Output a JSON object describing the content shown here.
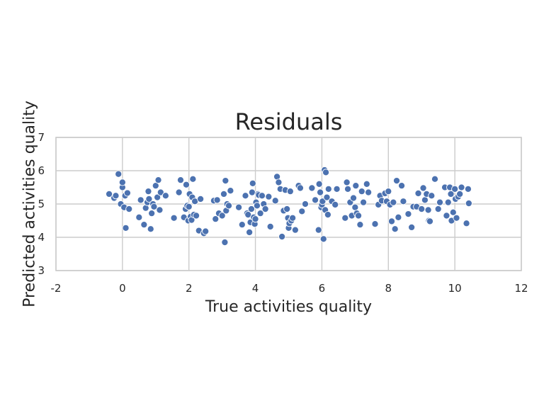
{
  "chart_data": {
    "type": "scatter",
    "title": "Residuals",
    "xlabel": "True activities quality",
    "ylabel": "Predicted activities quality",
    "xlim": [
      -2,
      12
    ],
    "ylim": [
      3,
      7
    ],
    "xticks": [
      -2,
      0,
      2,
      4,
      6,
      8,
      10,
      12
    ],
    "yticks": [
      3,
      4,
      5,
      6,
      7
    ],
    "grid": true,
    "legend": "none",
    "series": [
      {
        "color": "#4c72b0",
        "points": [
          [
            -0.4,
            5.3
          ],
          [
            -0.25,
            5.18
          ],
          [
            -0.2,
            5.25
          ],
          [
            -0.12,
            5.9
          ],
          [
            -0.05,
            5.0
          ],
          [
            0.0,
            5.5
          ],
          [
            0.0,
            5.65
          ],
          [
            0.05,
            4.9
          ],
          [
            0.08,
            5.25
          ],
          [
            0.1,
            4.28
          ],
          [
            0.15,
            5.33
          ],
          [
            0.2,
            4.85
          ],
          [
            0.5,
            4.6
          ],
          [
            0.55,
            5.12
          ],
          [
            0.65,
            4.38
          ],
          [
            0.7,
            4.88
          ],
          [
            0.75,
            5.05
          ],
          [
            0.78,
            5.38
          ],
          [
            0.8,
            5.15
          ],
          [
            0.85,
            4.25
          ],
          [
            0.88,
            4.72
          ],
          [
            0.92,
            5.0
          ],
          [
            0.95,
            4.92
          ],
          [
            1.0,
            5.55
          ],
          [
            1.05,
            5.2
          ],
          [
            1.08,
            5.72
          ],
          [
            1.12,
            4.82
          ],
          [
            1.15,
            5.35
          ],
          [
            1.3,
            5.25
          ],
          [
            1.55,
            4.58
          ],
          [
            1.7,
            5.35
          ],
          [
            1.75,
            5.72
          ],
          [
            1.85,
            4.6
          ],
          [
            1.9,
            4.85
          ],
          [
            1.92,
            5.58
          ],
          [
            1.95,
            4.95
          ],
          [
            1.98,
            4.5
          ],
          [
            2.0,
            4.92
          ],
          [
            2.02,
            5.3
          ],
          [
            2.05,
            4.62
          ],
          [
            2.08,
            4.52
          ],
          [
            2.1,
            5.2
          ],
          [
            2.12,
            5.75
          ],
          [
            2.15,
            4.68
          ],
          [
            2.18,
            5.08
          ],
          [
            2.22,
            4.65
          ],
          [
            2.3,
            4.2
          ],
          [
            2.35,
            5.15
          ],
          [
            2.45,
            4.12
          ],
          [
            2.5,
            4.18
          ],
          [
            2.75,
            5.1
          ],
          [
            2.8,
            4.55
          ],
          [
            2.85,
            5.12
          ],
          [
            2.9,
            4.72
          ],
          [
            3.0,
            4.65
          ],
          [
            3.05,
            5.3
          ],
          [
            3.08,
            3.85
          ],
          [
            3.1,
            5.7
          ],
          [
            3.12,
            4.8
          ],
          [
            3.15,
            5.0
          ],
          [
            3.2,
            4.95
          ],
          [
            3.25,
            5.4
          ],
          [
            3.5,
            4.9
          ],
          [
            3.6,
            4.38
          ],
          [
            3.7,
            5.25
          ],
          [
            3.75,
            4.72
          ],
          [
            3.78,
            4.68
          ],
          [
            3.82,
            4.15
          ],
          [
            3.85,
            4.45
          ],
          [
            3.88,
            4.85
          ],
          [
            3.9,
            5.35
          ],
          [
            3.92,
            5.62
          ],
          [
            3.95,
            4.6
          ],
          [
            3.98,
            4.4
          ],
          [
            4.0,
            4.55
          ],
          [
            4.02,
            5.05
          ],
          [
            4.05,
            4.95
          ],
          [
            4.08,
            5.3
          ],
          [
            4.1,
            5.27
          ],
          [
            4.15,
            4.72
          ],
          [
            4.2,
            5.25
          ],
          [
            4.25,
            5.0
          ],
          [
            4.3,
            4.85
          ],
          [
            4.4,
            5.22
          ],
          [
            4.45,
            4.32
          ],
          [
            4.6,
            5.1
          ],
          [
            4.65,
            5.82
          ],
          [
            4.7,
            5.65
          ],
          [
            4.75,
            5.45
          ],
          [
            4.8,
            4.02
          ],
          [
            4.85,
            4.8
          ],
          [
            4.9,
            5.42
          ],
          [
            4.95,
            4.85
          ],
          [
            4.98,
            4.58
          ],
          [
            5.0,
            4.28
          ],
          [
            5.02,
            4.42
          ],
          [
            5.05,
            5.38
          ],
          [
            5.08,
            4.5
          ],
          [
            5.12,
            4.58
          ],
          [
            5.2,
            4.22
          ],
          [
            5.3,
            5.55
          ],
          [
            5.35,
            5.48
          ],
          [
            5.4,
            4.78
          ],
          [
            5.5,
            5.0
          ],
          [
            5.7,
            5.48
          ],
          [
            5.8,
            5.12
          ],
          [
            5.9,
            4.22
          ],
          [
            5.92,
            5.6
          ],
          [
            5.95,
            5.35
          ],
          [
            5.98,
            4.9
          ],
          [
            6.0,
            4.98
          ],
          [
            6.02,
            5.08
          ],
          [
            6.05,
            3.95
          ],
          [
            6.08,
            6.02
          ],
          [
            6.1,
            4.82
          ],
          [
            6.12,
            5.95
          ],
          [
            6.15,
            5.2
          ],
          [
            6.18,
            4.68
          ],
          [
            6.2,
            5.45
          ],
          [
            6.3,
            5.08
          ],
          [
            6.4,
            4.98
          ],
          [
            6.45,
            5.45
          ],
          [
            6.7,
            4.58
          ],
          [
            6.75,
            5.65
          ],
          [
            6.78,
            5.45
          ],
          [
            6.85,
            5.05
          ],
          [
            6.9,
            4.65
          ],
          [
            6.95,
            5.18
          ],
          [
            7.0,
            4.9
          ],
          [
            7.02,
            5.55
          ],
          [
            7.05,
            4.72
          ],
          [
            7.1,
            4.65
          ],
          [
            7.15,
            4.38
          ],
          [
            7.2,
            5.38
          ],
          [
            7.25,
            5.05
          ],
          [
            7.35,
            5.6
          ],
          [
            7.4,
            5.35
          ],
          [
            7.6,
            4.4
          ],
          [
            7.7,
            4.98
          ],
          [
            7.75,
            5.25
          ],
          [
            7.8,
            5.1
          ],
          [
            7.9,
            5.32
          ],
          [
            7.95,
            5.08
          ],
          [
            8.0,
            5.38
          ],
          [
            8.05,
            4.98
          ],
          [
            8.1,
            4.48
          ],
          [
            8.15,
            5.05
          ],
          [
            8.2,
            4.25
          ],
          [
            8.25,
            5.7
          ],
          [
            8.3,
            4.6
          ],
          [
            8.4,
            5.55
          ],
          [
            8.45,
            5.08
          ],
          [
            8.6,
            4.7
          ],
          [
            8.7,
            4.3
          ],
          [
            8.75,
            4.92
          ],
          [
            8.85,
            4.92
          ],
          [
            8.9,
            5.32
          ],
          [
            9.0,
            4.85
          ],
          [
            9.05,
            5.48
          ],
          [
            9.1,
            5.12
          ],
          [
            9.15,
            5.3
          ],
          [
            9.2,
            4.82
          ],
          [
            9.22,
            4.5
          ],
          [
            9.25,
            4.48
          ],
          [
            9.3,
            5.25
          ],
          [
            9.4,
            5.75
          ],
          [
            9.5,
            4.85
          ],
          [
            9.55,
            5.05
          ],
          [
            9.7,
            5.5
          ],
          [
            9.75,
            4.65
          ],
          [
            9.8,
            5.05
          ],
          [
            9.85,
            5.5
          ],
          [
            9.88,
            5.3
          ],
          [
            9.9,
            4.5
          ],
          [
            9.95,
            4.75
          ],
          [
            10.0,
            5.45
          ],
          [
            10.02,
            5.15
          ],
          [
            10.05,
            4.58
          ],
          [
            10.1,
            5.22
          ],
          [
            10.15,
            5.3
          ],
          [
            10.2,
            5.5
          ],
          [
            10.35,
            4.42
          ],
          [
            10.4,
            5.45
          ],
          [
            10.42,
            5.02
          ]
        ]
      }
    ]
  }
}
